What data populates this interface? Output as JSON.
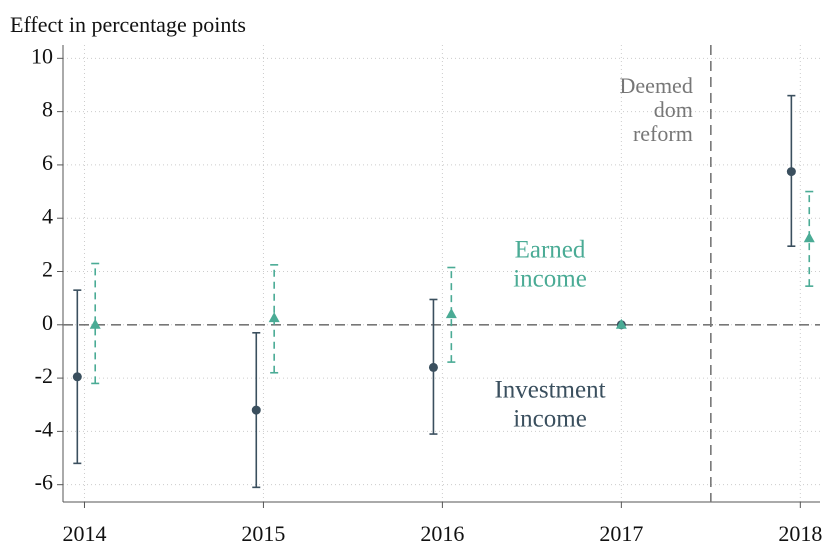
{
  "chart_data": {
    "type": "line",
    "y_axis_label": "Effect in percentage points",
    "xlim": [
      2013.88,
      2018.11
    ],
    "xticks": [
      2014,
      2015,
      2016,
      2017,
      2018
    ],
    "ylim": [
      -6.65,
      10.5
    ],
    "yticks": [
      -6,
      -4,
      -2,
      0,
      2,
      4,
      6,
      8,
      10
    ],
    "grid": true,
    "hline": 0,
    "vline": {
      "x": 2017.5,
      "label": [
        "Deemed",
        "dom",
        "reform"
      ]
    },
    "series": [
      {
        "label": [
          "Investment",
          "income"
        ],
        "color": "#3a4f5e",
        "marker": "circle",
        "dash": false,
        "x": [
          2013.96,
          2014.96,
          2015.95,
          2017,
          2017.95
        ],
        "values": [
          -1.95,
          -3.2,
          -1.6,
          0,
          5.75
        ],
        "ci_low": [
          -5.2,
          -6.1,
          -4.1,
          null,
          2.95
        ],
        "ci_high": [
          1.3,
          -0.3,
          0.95,
          null,
          8.6
        ]
      },
      {
        "label": [
          "Earned",
          "income"
        ],
        "color": "#4aab95",
        "marker": "triangle",
        "dash": true,
        "x": [
          2014.06,
          2015.06,
          2016.05,
          2017,
          2018.05
        ],
        "values": [
          0,
          0.25,
          0.4,
          0,
          3.25
        ],
        "ci_low": [
          -2.2,
          -1.8,
          -1.4,
          null,
          1.45
        ],
        "ci_high": [
          2.3,
          2.25,
          2.15,
          null,
          5.0
        ]
      }
    ]
  }
}
